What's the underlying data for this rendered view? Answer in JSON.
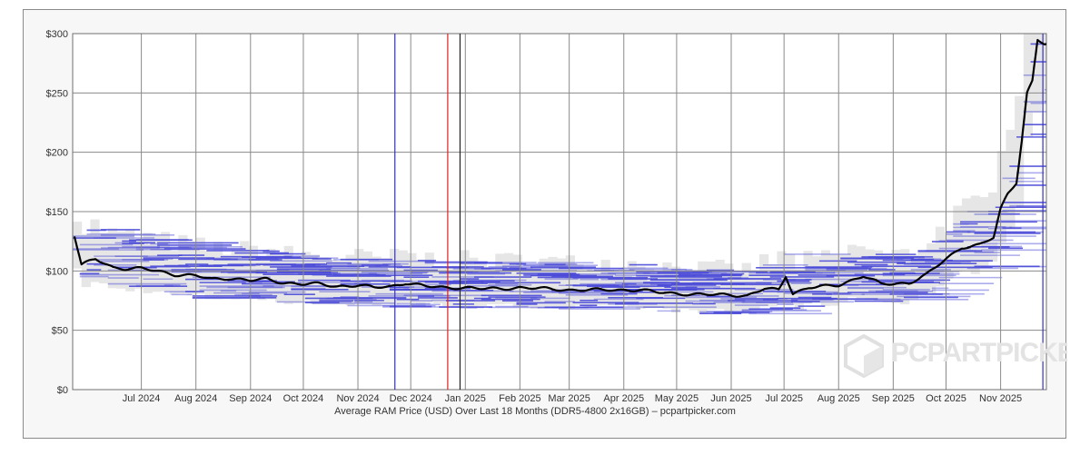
{
  "chart_data": {
    "type": "line",
    "title": "",
    "caption": "Average RAM Price (USD) Over Last 18 Months (DDR5-4800 2x16GB) – pcpartpicker.com",
    "ylabel": "",
    "ylim": [
      0,
      300
    ],
    "y_ticks": [
      "$300",
      "$250",
      "$200",
      "$150",
      "$100",
      "$50",
      "$0"
    ],
    "x_ticks": [
      "Jul 2024",
      "Aug 2024",
      "Sep 2024",
      "Oct 2024",
      "Nov 2024",
      "Dec 2024",
      "Jan 2025",
      "Feb 2025",
      "Mar 2025",
      "Apr 2025",
      "May 2025",
      "Jun 2025",
      "Jul 2025",
      "Aug 2025",
      "Sep 2025",
      "Oct 2025",
      "Nov 2025"
    ],
    "grid": true,
    "series": [
      {
        "name": "",
        "x": [
          "2024-05-24",
          "2024-05-28",
          "2024-06-05",
          "2024-06-15",
          "2024-06-22",
          "2024-07-01",
          "2024-07-10",
          "2024-07-20",
          "2024-08-01",
          "2024-08-10",
          "2024-08-20",
          "2024-09-01",
          "2024-09-10",
          "2024-09-20",
          "2024-10-01",
          "2024-10-10",
          "2024-10-20",
          "2024-11-01",
          "2024-11-10",
          "2024-11-20",
          "2024-11-28",
          "2024-12-10",
          "2024-12-20",
          "2025-01-01",
          "2025-01-10",
          "2025-01-20",
          "2025-02-01",
          "2025-02-15",
          "2025-03-01",
          "2025-03-15",
          "2025-04-01",
          "2025-04-10",
          "2025-04-20",
          "2025-05-01",
          "2025-05-15",
          "2025-06-01",
          "2025-06-10",
          "2025-06-20",
          "2025-06-28",
          "2025-07-02",
          "2025-07-06",
          "2025-07-15",
          "2025-07-25",
          "2025-08-01",
          "2025-08-15",
          "2025-08-25",
          "2025-09-01",
          "2025-09-10",
          "2025-09-20",
          "2025-10-01",
          "2025-10-10",
          "2025-10-20",
          "2025-10-28",
          "2025-11-01",
          "2025-11-05",
          "2025-11-10",
          "2025-11-13",
          "2025-11-16",
          "2025-11-19",
          "2025-11-22",
          "2025-11-26"
        ],
        "values": [
          130,
          105,
          110,
          103,
          102,
          102,
          100,
          97,
          96,
          93,
          94,
          92,
          93,
          90,
          89,
          89,
          87,
          88,
          86,
          87,
          90,
          87,
          86,
          86,
          85,
          85,
          86,
          85,
          84,
          84,
          84,
          84,
          82,
          81,
          80,
          80,
          79,
          85,
          84,
          96,
          81,
          86,
          87,
          88,
          96,
          89,
          89,
          90,
          97,
          110,
          120,
          122,
          128,
          152,
          165,
          175,
          210,
          250,
          260,
          295,
          291
        ],
        "color": "#000000"
      }
    ],
    "vertical_markers": [
      {
        "date": "2024-11-22",
        "color": "#3333bb"
      },
      {
        "date": "2024-12-22",
        "color": "#dd2222"
      },
      {
        "date": "2024-12-29",
        "color": "#222222"
      },
      {
        "date": "2025-11-25",
        "color": "#3333bb"
      }
    ],
    "colors": {
      "line": "#000000",
      "retailer_lines": "#4a4ad8",
      "range_band": "#e6e6e6",
      "grid": "#8a8a8a"
    },
    "watermark": "PCPARTPICKER"
  }
}
